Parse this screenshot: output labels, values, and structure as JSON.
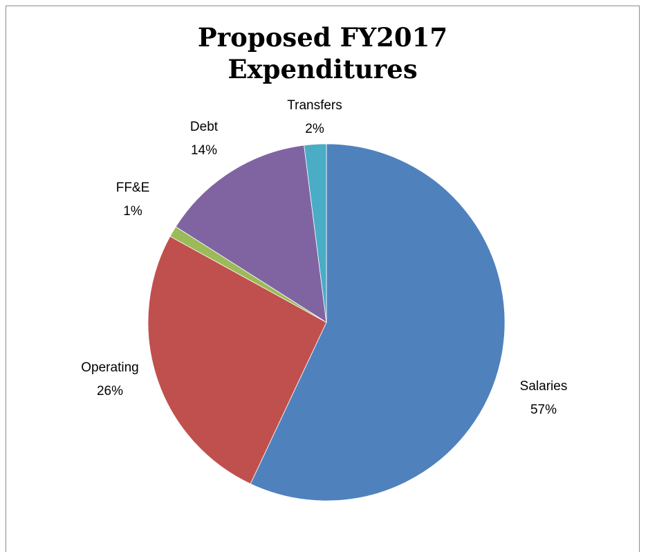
{
  "chart_data": {
    "type": "pie",
    "title": [
      "Proposed FY2017",
      "Expenditures"
    ],
    "slices": [
      {
        "name": "Salaries",
        "value": 57,
        "label": "57%",
        "color": "#4f81bd"
      },
      {
        "name": "Operating",
        "value": 26,
        "label": "26%",
        "color": "#c0504d"
      },
      {
        "name": "FF&E",
        "value": 1,
        "label": "1%",
        "color": "#9bbb59"
      },
      {
        "name": "Debt",
        "value": 14,
        "label": "14%",
        "color": "#8064a2"
      },
      {
        "name": "Transfers",
        "value": 2,
        "label": "2%",
        "color": "#4bacc6"
      }
    ]
  }
}
